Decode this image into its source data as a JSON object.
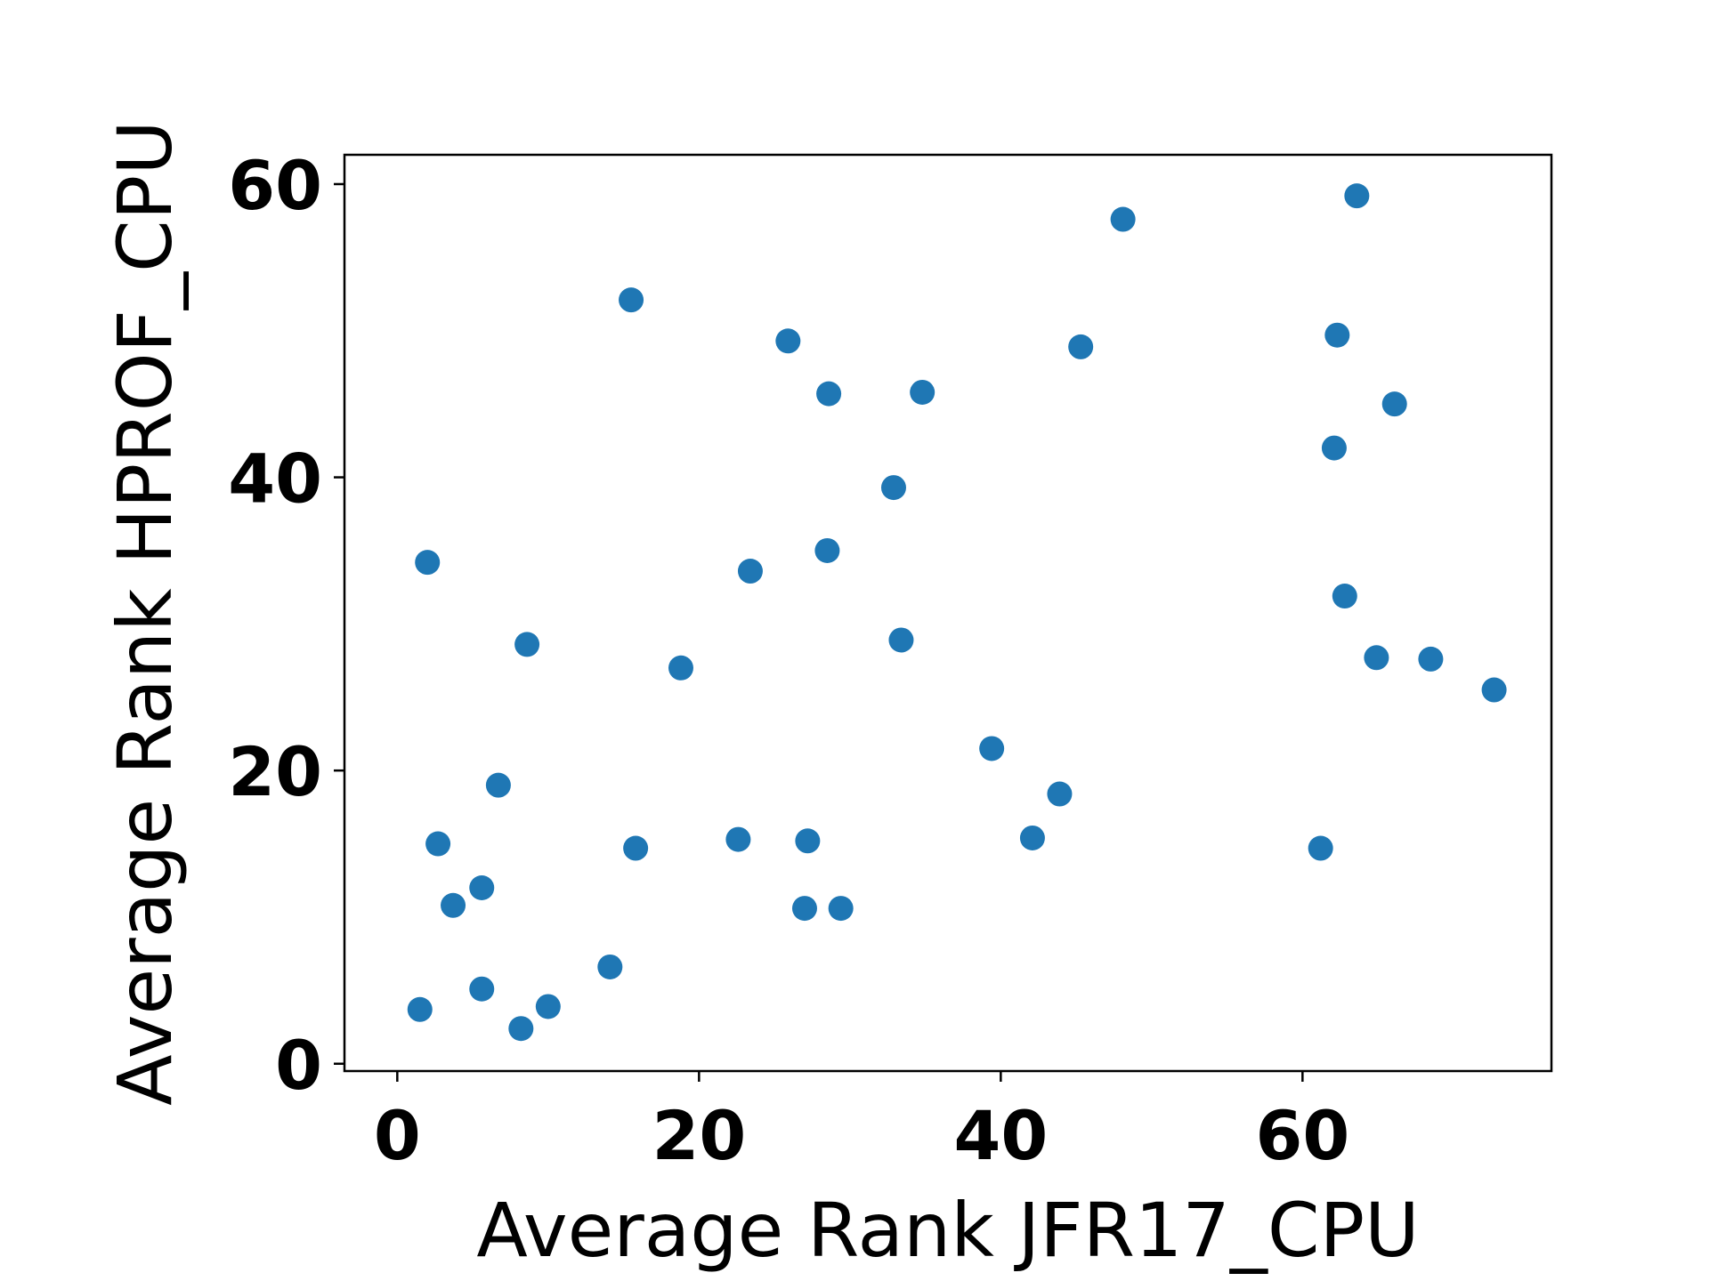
{
  "chart_data": {
    "type": "scatter",
    "xlabel": "Average Rank JFR17_CPU",
    "ylabel": "Average Rank HPROF_CPU",
    "xlim": [
      -3.5,
      76.5
    ],
    "ylim": [
      -0.5,
      62
    ],
    "xticks": [
      0,
      20,
      40,
      60
    ],
    "yticks": [
      0,
      20,
      40,
      60
    ],
    "grid": false,
    "marker_color": "#1f77b4",
    "series": [
      {
        "points": [
          {
            "x": 1.5,
            "y": 3.7
          },
          {
            "x": 2.0,
            "y": 34.2
          },
          {
            "x": 2.7,
            "y": 15.0
          },
          {
            "x": 3.7,
            "y": 10.8
          },
          {
            "x": 5.6,
            "y": 12.0
          },
          {
            "x": 5.6,
            "y": 5.1
          },
          {
            "x": 6.7,
            "y": 19.0
          },
          {
            "x": 8.2,
            "y": 2.4
          },
          {
            "x": 8.6,
            "y": 28.6
          },
          {
            "x": 10.0,
            "y": 3.9
          },
          {
            "x": 14.1,
            "y": 6.6
          },
          {
            "x": 15.5,
            "y": 52.1
          },
          {
            "x": 15.8,
            "y": 14.7
          },
          {
            "x": 18.8,
            "y": 27.0
          },
          {
            "x": 22.6,
            "y": 15.3
          },
          {
            "x": 23.4,
            "y": 33.6
          },
          {
            "x": 25.9,
            "y": 49.3
          },
          {
            "x": 27.0,
            "y": 10.6
          },
          {
            "x": 27.2,
            "y": 15.2
          },
          {
            "x": 28.5,
            "y": 35.0
          },
          {
            "x": 28.6,
            "y": 45.7
          },
          {
            "x": 29.4,
            "y": 10.6
          },
          {
            "x": 32.9,
            "y": 39.3
          },
          {
            "x": 33.4,
            "y": 28.9
          },
          {
            "x": 34.8,
            "y": 45.8
          },
          {
            "x": 39.4,
            "y": 21.5
          },
          {
            "x": 42.1,
            "y": 15.4
          },
          {
            "x": 43.9,
            "y": 18.4
          },
          {
            "x": 45.3,
            "y": 48.9
          },
          {
            "x": 48.1,
            "y": 57.6
          },
          {
            "x": 61.2,
            "y": 14.7
          },
          {
            "x": 62.1,
            "y": 42.0
          },
          {
            "x": 62.3,
            "y": 49.7
          },
          {
            "x": 62.8,
            "y": 31.9
          },
          {
            "x": 63.6,
            "y": 59.2
          },
          {
            "x": 64.9,
            "y": 27.7
          },
          {
            "x": 66.1,
            "y": 45.0
          },
          {
            "x": 68.5,
            "y": 27.6
          },
          {
            "x": 72.7,
            "y": 25.5
          }
        ]
      }
    ]
  }
}
